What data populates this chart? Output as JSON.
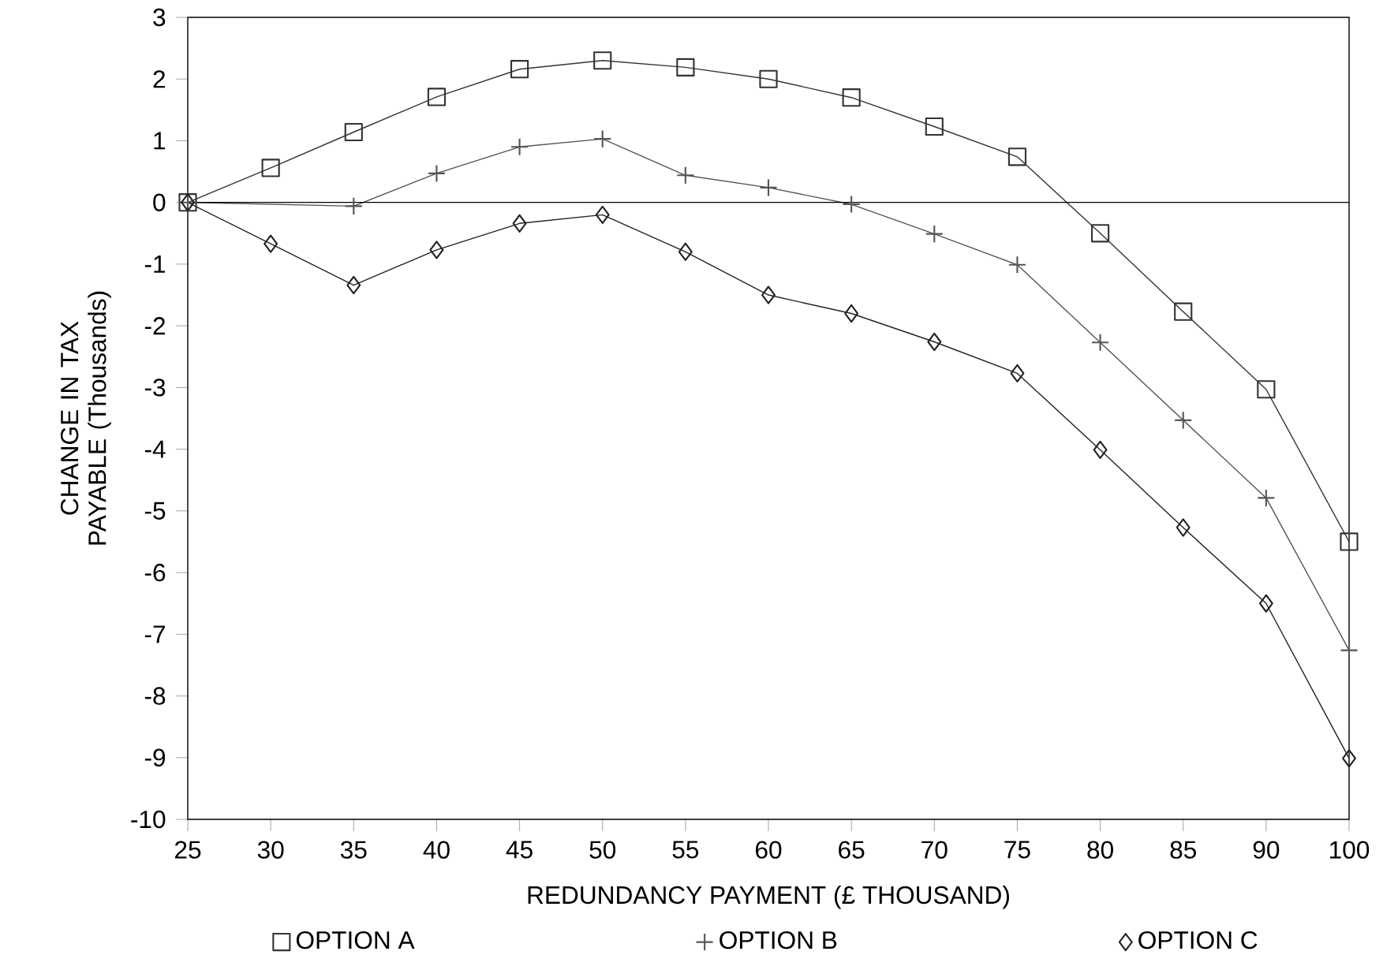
{
  "chart_data": {
    "type": "line",
    "xlabel": "REDUNDANCY PAYMENT (£ THOUSAND)",
    "ylabel": "CHANGE IN TAX PAYABLE (Thousands)",
    "categories": [
      "25",
      "30",
      "35",
      "40",
      "45",
      "50",
      "55",
      "60",
      "65",
      "70",
      "75",
      "80",
      "85",
      "90",
      "100"
    ],
    "series": [
      {
        "name": "OPTION A",
        "color": "#333333",
        "marker": "square",
        "values": [
          0,
          0.56,
          1.14,
          1.71,
          2.16,
          2.3,
          2.19,
          2.0,
          1.7,
          1.23,
          0.74,
          -0.5,
          -1.77,
          -3.03,
          -5.5
        ]
      },
      {
        "name": "OPTION B",
        "color": "#555555",
        "marker": "cross",
        "values": [
          0,
          null,
          -0.06,
          0.47,
          0.9,
          1.03,
          0.44,
          0.24,
          -0.03,
          -0.51,
          -1.01,
          -2.27,
          -3.53,
          -4.79,
          -7.26
        ]
      },
      {
        "name": "OPTION C",
        "color": "#222222",
        "marker": "diamond",
        "values": [
          0,
          -0.67,
          -1.34,
          -0.77,
          -0.34,
          -0.2,
          -0.8,
          -1.5,
          -1.8,
          -2.26,
          -2.77,
          -4.01,
          -5.27,
          -6.5,
          -9.01
        ]
      }
    ],
    "ylim": [
      -10,
      3
    ],
    "yticks": [
      -10,
      -9,
      -8,
      -7,
      -6,
      -5,
      -4,
      -3,
      -2,
      -1,
      0,
      1,
      2,
      3
    ],
    "ref_lines": [
      {
        "axis": "y",
        "value": 0
      }
    ],
    "grid": false,
    "legend": "bottom",
    "line_style": "solid"
  }
}
